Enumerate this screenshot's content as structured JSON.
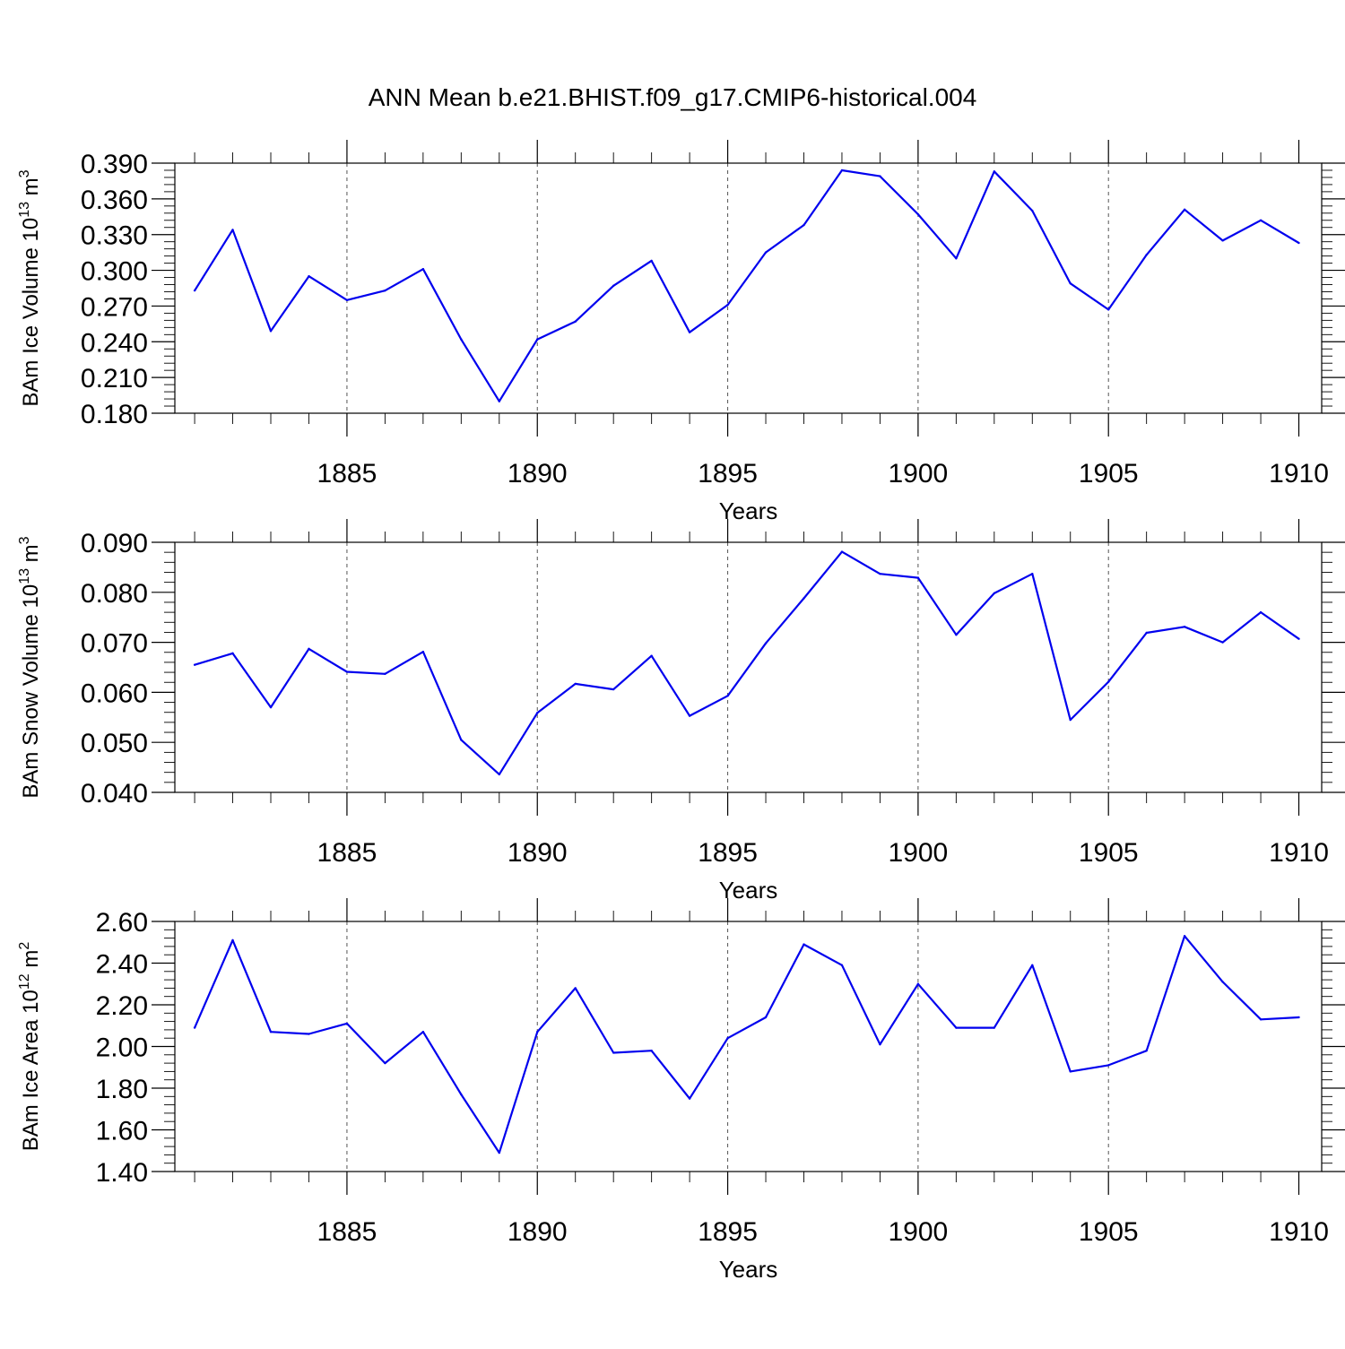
{
  "title": "ANN Mean b.e21.BHIST.f09_g17.CMIP6-historical.004",
  "colors": {
    "line": "#0000ee",
    "axis": "#000000",
    "grid": "#555555"
  },
  "chart_data": [
    {
      "type": "line",
      "id": "ice-volume",
      "ylabel_main": "BAm Ice Volume 10",
      "ylabel_exp1": "13",
      "ylabel_mid": " m",
      "ylabel_exp2": "3",
      "xlabel": "Years",
      "xlim": [
        1881,
        1910
      ],
      "ylim": [
        0.18,
        0.39
      ],
      "yticks": [
        0.18,
        0.21,
        0.24,
        0.27,
        0.3,
        0.33,
        0.36,
        0.39
      ],
      "ytick_labels": [
        "0.180",
        "0.210",
        "0.240",
        "0.270",
        "0.300",
        "0.330",
        "0.360",
        "0.390"
      ],
      "xticks": [
        1885,
        1890,
        1895,
        1900,
        1905,
        1910
      ],
      "xtick_labels": [
        "1885",
        "1890",
        "1895",
        "1900",
        "1905",
        "1910"
      ],
      "grid_x": [
        1885,
        1890,
        1895,
        1900,
        1905
      ],
      "x": [
        1881,
        1882,
        1883,
        1884,
        1885,
        1886,
        1887,
        1888,
        1889,
        1890,
        1891,
        1892,
        1893,
        1894,
        1895,
        1896,
        1897,
        1898,
        1899,
        1900,
        1901,
        1902,
        1903,
        1904,
        1905,
        1906,
        1907,
        1908,
        1909,
        1910
      ],
      "values": [
        0.283,
        0.334,
        0.249,
        0.295,
        0.275,
        0.283,
        0.301,
        0.242,
        0.19,
        0.242,
        0.257,
        0.287,
        0.308,
        0.248,
        0.271,
        0.315,
        0.338,
        0.384,
        0.379,
        0.347,
        0.31,
        0.383,
        0.35,
        0.289,
        0.267,
        0.313,
        0.351,
        0.325,
        0.342,
        0.323
      ]
    },
    {
      "type": "line",
      "id": "snow-volume",
      "ylabel_main": "BAm Snow Volume 10",
      "ylabel_exp1": "13",
      "ylabel_mid": " m",
      "ylabel_exp2": "3",
      "xlabel": "Years",
      "xlim": [
        1881,
        1910
      ],
      "ylim": [
        0.04,
        0.09
      ],
      "yticks": [
        0.04,
        0.05,
        0.06,
        0.07,
        0.08,
        0.09
      ],
      "ytick_labels": [
        "0.040",
        "0.050",
        "0.060",
        "0.070",
        "0.080",
        "0.090"
      ],
      "xticks": [
        1885,
        1890,
        1895,
        1900,
        1905,
        1910
      ],
      "xtick_labels": [
        "1885",
        "1890",
        "1895",
        "1900",
        "1905",
        "1910"
      ],
      "grid_x": [
        1885,
        1890,
        1895,
        1900,
        1905
      ],
      "x": [
        1881,
        1882,
        1883,
        1884,
        1885,
        1886,
        1887,
        1888,
        1889,
        1890,
        1891,
        1892,
        1893,
        1894,
        1895,
        1896,
        1897,
        1898,
        1899,
        1900,
        1901,
        1902,
        1903,
        1904,
        1905,
        1906,
        1907,
        1908,
        1909,
        1910
      ],
      "values": [
        0.0655,
        0.0678,
        0.057,
        0.0687,
        0.0641,
        0.0637,
        0.0681,
        0.0505,
        0.0436,
        0.0559,
        0.0617,
        0.0606,
        0.0673,
        0.0553,
        0.0593,
        0.0698,
        0.0788,
        0.0881,
        0.0837,
        0.0829,
        0.0715,
        0.0798,
        0.0837,
        0.0545,
        0.0621,
        0.0719,
        0.0731,
        0.07,
        0.076,
        0.0707
      ]
    },
    {
      "type": "line",
      "id": "ice-area",
      "ylabel_main": "BAm Ice Area 10",
      "ylabel_exp1": "12",
      "ylabel_mid": " m",
      "ylabel_exp2": "2",
      "xlabel": "Years",
      "xlim": [
        1881,
        1910
      ],
      "ylim": [
        1.4,
        2.6
      ],
      "yticks": [
        1.4,
        1.6,
        1.8,
        2.0,
        2.2,
        2.4,
        2.6
      ],
      "ytick_labels": [
        "1.40",
        "1.60",
        "1.80",
        "2.00",
        "2.20",
        "2.40",
        "2.60"
      ],
      "xticks": [
        1885,
        1890,
        1895,
        1900,
        1905,
        1910
      ],
      "xtick_labels": [
        "1885",
        "1890",
        "1895",
        "1900",
        "1905",
        "1910"
      ],
      "grid_x": [
        1885,
        1890,
        1895,
        1900,
        1905
      ],
      "x": [
        1881,
        1882,
        1883,
        1884,
        1885,
        1886,
        1887,
        1888,
        1889,
        1890,
        1891,
        1892,
        1893,
        1894,
        1895,
        1896,
        1897,
        1898,
        1899,
        1900,
        1901,
        1902,
        1903,
        1904,
        1905,
        1906,
        1907,
        1908,
        1909,
        1910
      ],
      "values": [
        2.09,
        2.51,
        2.07,
        2.06,
        2.11,
        1.92,
        2.07,
        1.77,
        1.49,
        2.07,
        2.28,
        1.97,
        1.98,
        1.75,
        2.04,
        2.14,
        2.49,
        2.39,
        2.01,
        2.3,
        2.09,
        2.09,
        2.39,
        1.88,
        1.91,
        1.98,
        2.53,
        2.31,
        2.13,
        2.14
      ]
    }
  ]
}
